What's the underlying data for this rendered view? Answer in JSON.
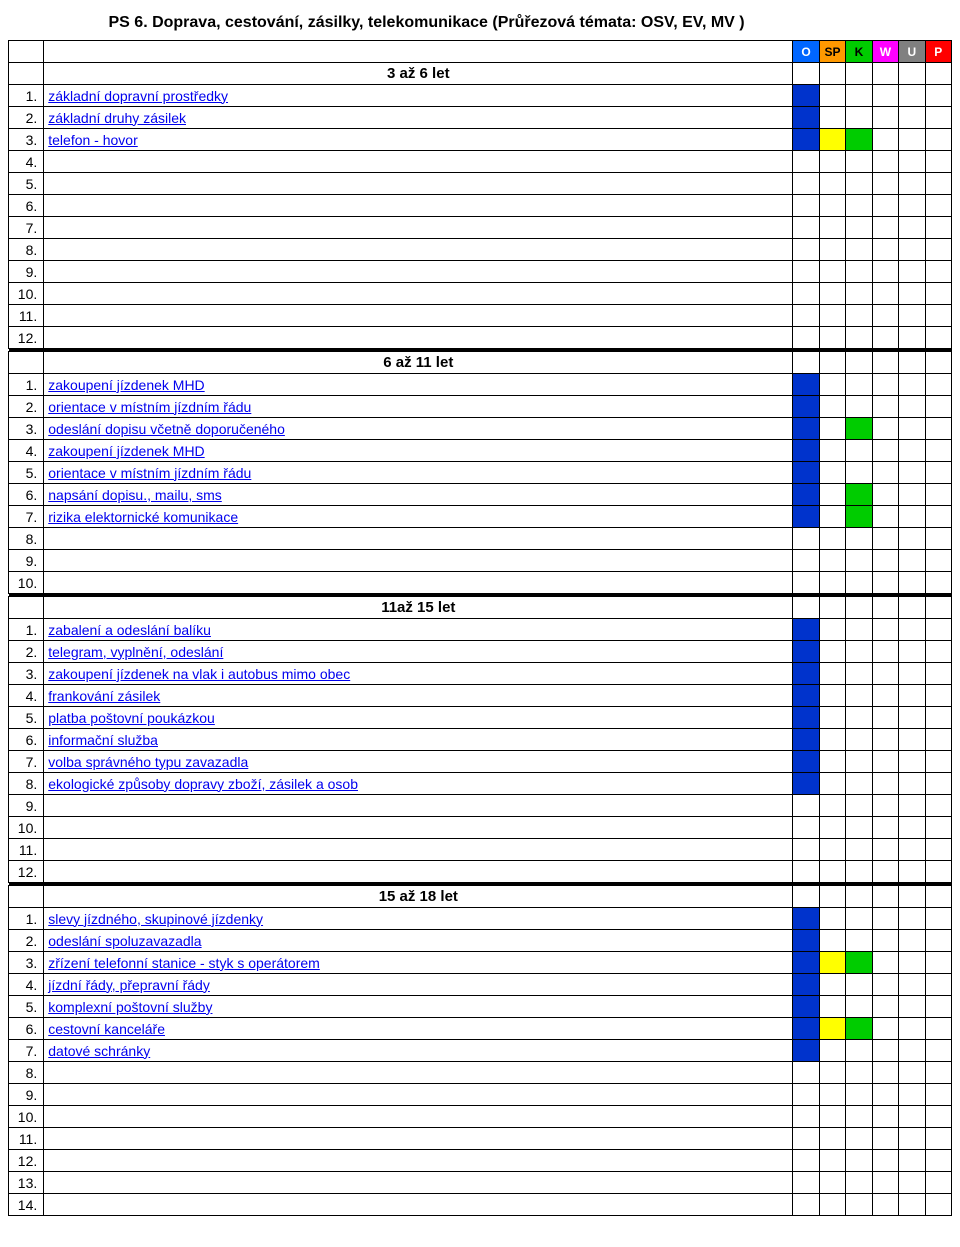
{
  "title": "PS 6. Doprava, cestování, zásilky, telekomunikace (Průřezová témata: OSV, EV, MV )",
  "columns": {
    "O": {
      "label": "O",
      "bg": "#0066ff",
      "fg": "#ffffff"
    },
    "SP": {
      "label": "SP",
      "bg": "#ff9900",
      "fg": "#000000"
    },
    "K": {
      "label": "K",
      "bg": "#00cc00",
      "fg": "#000000"
    },
    "W": {
      "label": "W",
      "bg": "#ff00ff",
      "fg": "#ffffff"
    },
    "U": {
      "label": "U",
      "bg": "#808080",
      "fg": "#ffffff"
    },
    "P": {
      "label": "P",
      "bg": "#ff0000",
      "fg": "#ffffff"
    }
  },
  "mark_colors": {
    "blue": "#0033cc",
    "yellow": "#ffff00",
    "green": "#00cc00"
  },
  "sections": [
    {
      "heading": "3 až 6 let",
      "rows": [
        {
          "n": "1.",
          "text": "základní dopravní prostředky",
          "marks": {
            "O": "blue"
          }
        },
        {
          "n": "2.",
          "text": "základní druhy zásilek",
          "marks": {
            "O": "blue"
          }
        },
        {
          "n": "3.",
          "text": "telefon - hovor",
          "marks": {
            "O": "blue",
            "SP": "yellow",
            "K": "green"
          }
        },
        {
          "n": "4.",
          "text": "",
          "marks": {}
        },
        {
          "n": "5.",
          "text": "",
          "marks": {}
        },
        {
          "n": "6.",
          "text": "",
          "marks": {}
        },
        {
          "n": "7.",
          "text": "",
          "marks": {}
        },
        {
          "n": "8.",
          "text": "",
          "marks": {}
        },
        {
          "n": "9.",
          "text": "",
          "marks": {}
        },
        {
          "n": "10.",
          "text": "",
          "marks": {}
        },
        {
          "n": "11.",
          "text": "",
          "marks": {}
        },
        {
          "n": "12.",
          "text": "",
          "marks": {}
        }
      ]
    },
    {
      "heading": "6 až 11 let",
      "rows": [
        {
          "n": "1.",
          "text": "zakoupení jízdenek MHD",
          "marks": {
            "O": "blue"
          }
        },
        {
          "n": "2.",
          "text": "orientace v místním jízdním řádu",
          "marks": {
            "O": "blue"
          }
        },
        {
          "n": "3.",
          "text": "odeslání dopisu včetně doporučeného",
          "marks": {
            "O": "blue",
            "K": "green"
          }
        },
        {
          "n": "4.",
          "text": "zakoupení jízdenek MHD",
          "marks": {
            "O": "blue"
          }
        },
        {
          "n": "5.",
          "text": "orientace v místním jízdním řádu",
          "marks": {
            "O": "blue"
          }
        },
        {
          "n": "6.",
          "text": "napsání dopisu., mailu, sms",
          "marks": {
            "O": "blue",
            "K": "green"
          }
        },
        {
          "n": "7.",
          "text": "rizika elektornické komunikace",
          "marks": {
            "O": "blue",
            "K": "green"
          }
        },
        {
          "n": "8.",
          "text": "",
          "marks": {}
        },
        {
          "n": "9.",
          "text": "",
          "marks": {}
        },
        {
          "n": "10.",
          "text": "",
          "marks": {}
        }
      ]
    },
    {
      "heading": "11až 15 let",
      "rows": [
        {
          "n": "1.",
          "text": "zabalení a odeslání balíku",
          "marks": {
            "O": "blue"
          }
        },
        {
          "n": "2.",
          "text": "telegram, vyplnění, odeslání",
          "marks": {
            "O": "blue"
          }
        },
        {
          "n": "3.",
          "text": "zakoupení jízdenek na vlak i autobus mimo obec",
          "marks": {
            "O": "blue"
          }
        },
        {
          "n": "4.",
          "text": "frankování zásilek",
          "marks": {
            "O": "blue"
          }
        },
        {
          "n": "5.",
          "text": "platba poštovní poukázkou",
          "marks": {
            "O": "blue"
          }
        },
        {
          "n": "6.",
          "text": "informační služba",
          "marks": {
            "O": "blue"
          }
        },
        {
          "n": "7.",
          "text": "volba správného typu zavazadla",
          "marks": {
            "O": "blue"
          }
        },
        {
          "n": "8.",
          "text": "ekologické způsoby dopravy zboží, zásilek a osob",
          "marks": {
            "O": "blue"
          }
        },
        {
          "n": "9.",
          "text": "",
          "marks": {}
        },
        {
          "n": "10.",
          "text": "",
          "marks": {}
        },
        {
          "n": "11.",
          "text": "",
          "marks": {}
        },
        {
          "n": "12.",
          "text": "",
          "marks": {}
        }
      ]
    },
    {
      "heading": "15 až 18 let",
      "rows": [
        {
          "n": "1.",
          "text": "slevy jízdného, skupinové jízdenky",
          "marks": {
            "O": "blue"
          }
        },
        {
          "n": "2.",
          "text": "odeslání spoluzavazadla",
          "marks": {
            "O": "blue"
          }
        },
        {
          "n": "3.",
          "text": "zřízení telefonní stanice - styk s operátorem",
          "marks": {
            "O": "blue",
            "SP": "yellow",
            "K": "green"
          }
        },
        {
          "n": "4.",
          "text": "jízdní řády, přepravní řády",
          "marks": {
            "O": "blue"
          }
        },
        {
          "n": "5.",
          "text": "komplexní poštovní služby",
          "marks": {
            "O": "blue"
          }
        },
        {
          "n": "6.",
          "text": "cestovní kanceláře",
          "marks": {
            "O": "blue",
            "SP": "yellow",
            "K": "green"
          }
        },
        {
          "n": "7.",
          "text": "datové schránky",
          "marks": {
            "O": "blue"
          }
        },
        {
          "n": "8.",
          "text": "",
          "marks": {}
        },
        {
          "n": "9.",
          "text": "",
          "marks": {}
        },
        {
          "n": "10.",
          "text": "",
          "marks": {}
        },
        {
          "n": "11.",
          "text": "",
          "marks": {}
        },
        {
          "n": "12.",
          "text": "",
          "marks": {}
        },
        {
          "n": "13.",
          "text": "",
          "marks": {}
        },
        {
          "n": "14.",
          "text": "",
          "marks": {}
        }
      ]
    }
  ]
}
